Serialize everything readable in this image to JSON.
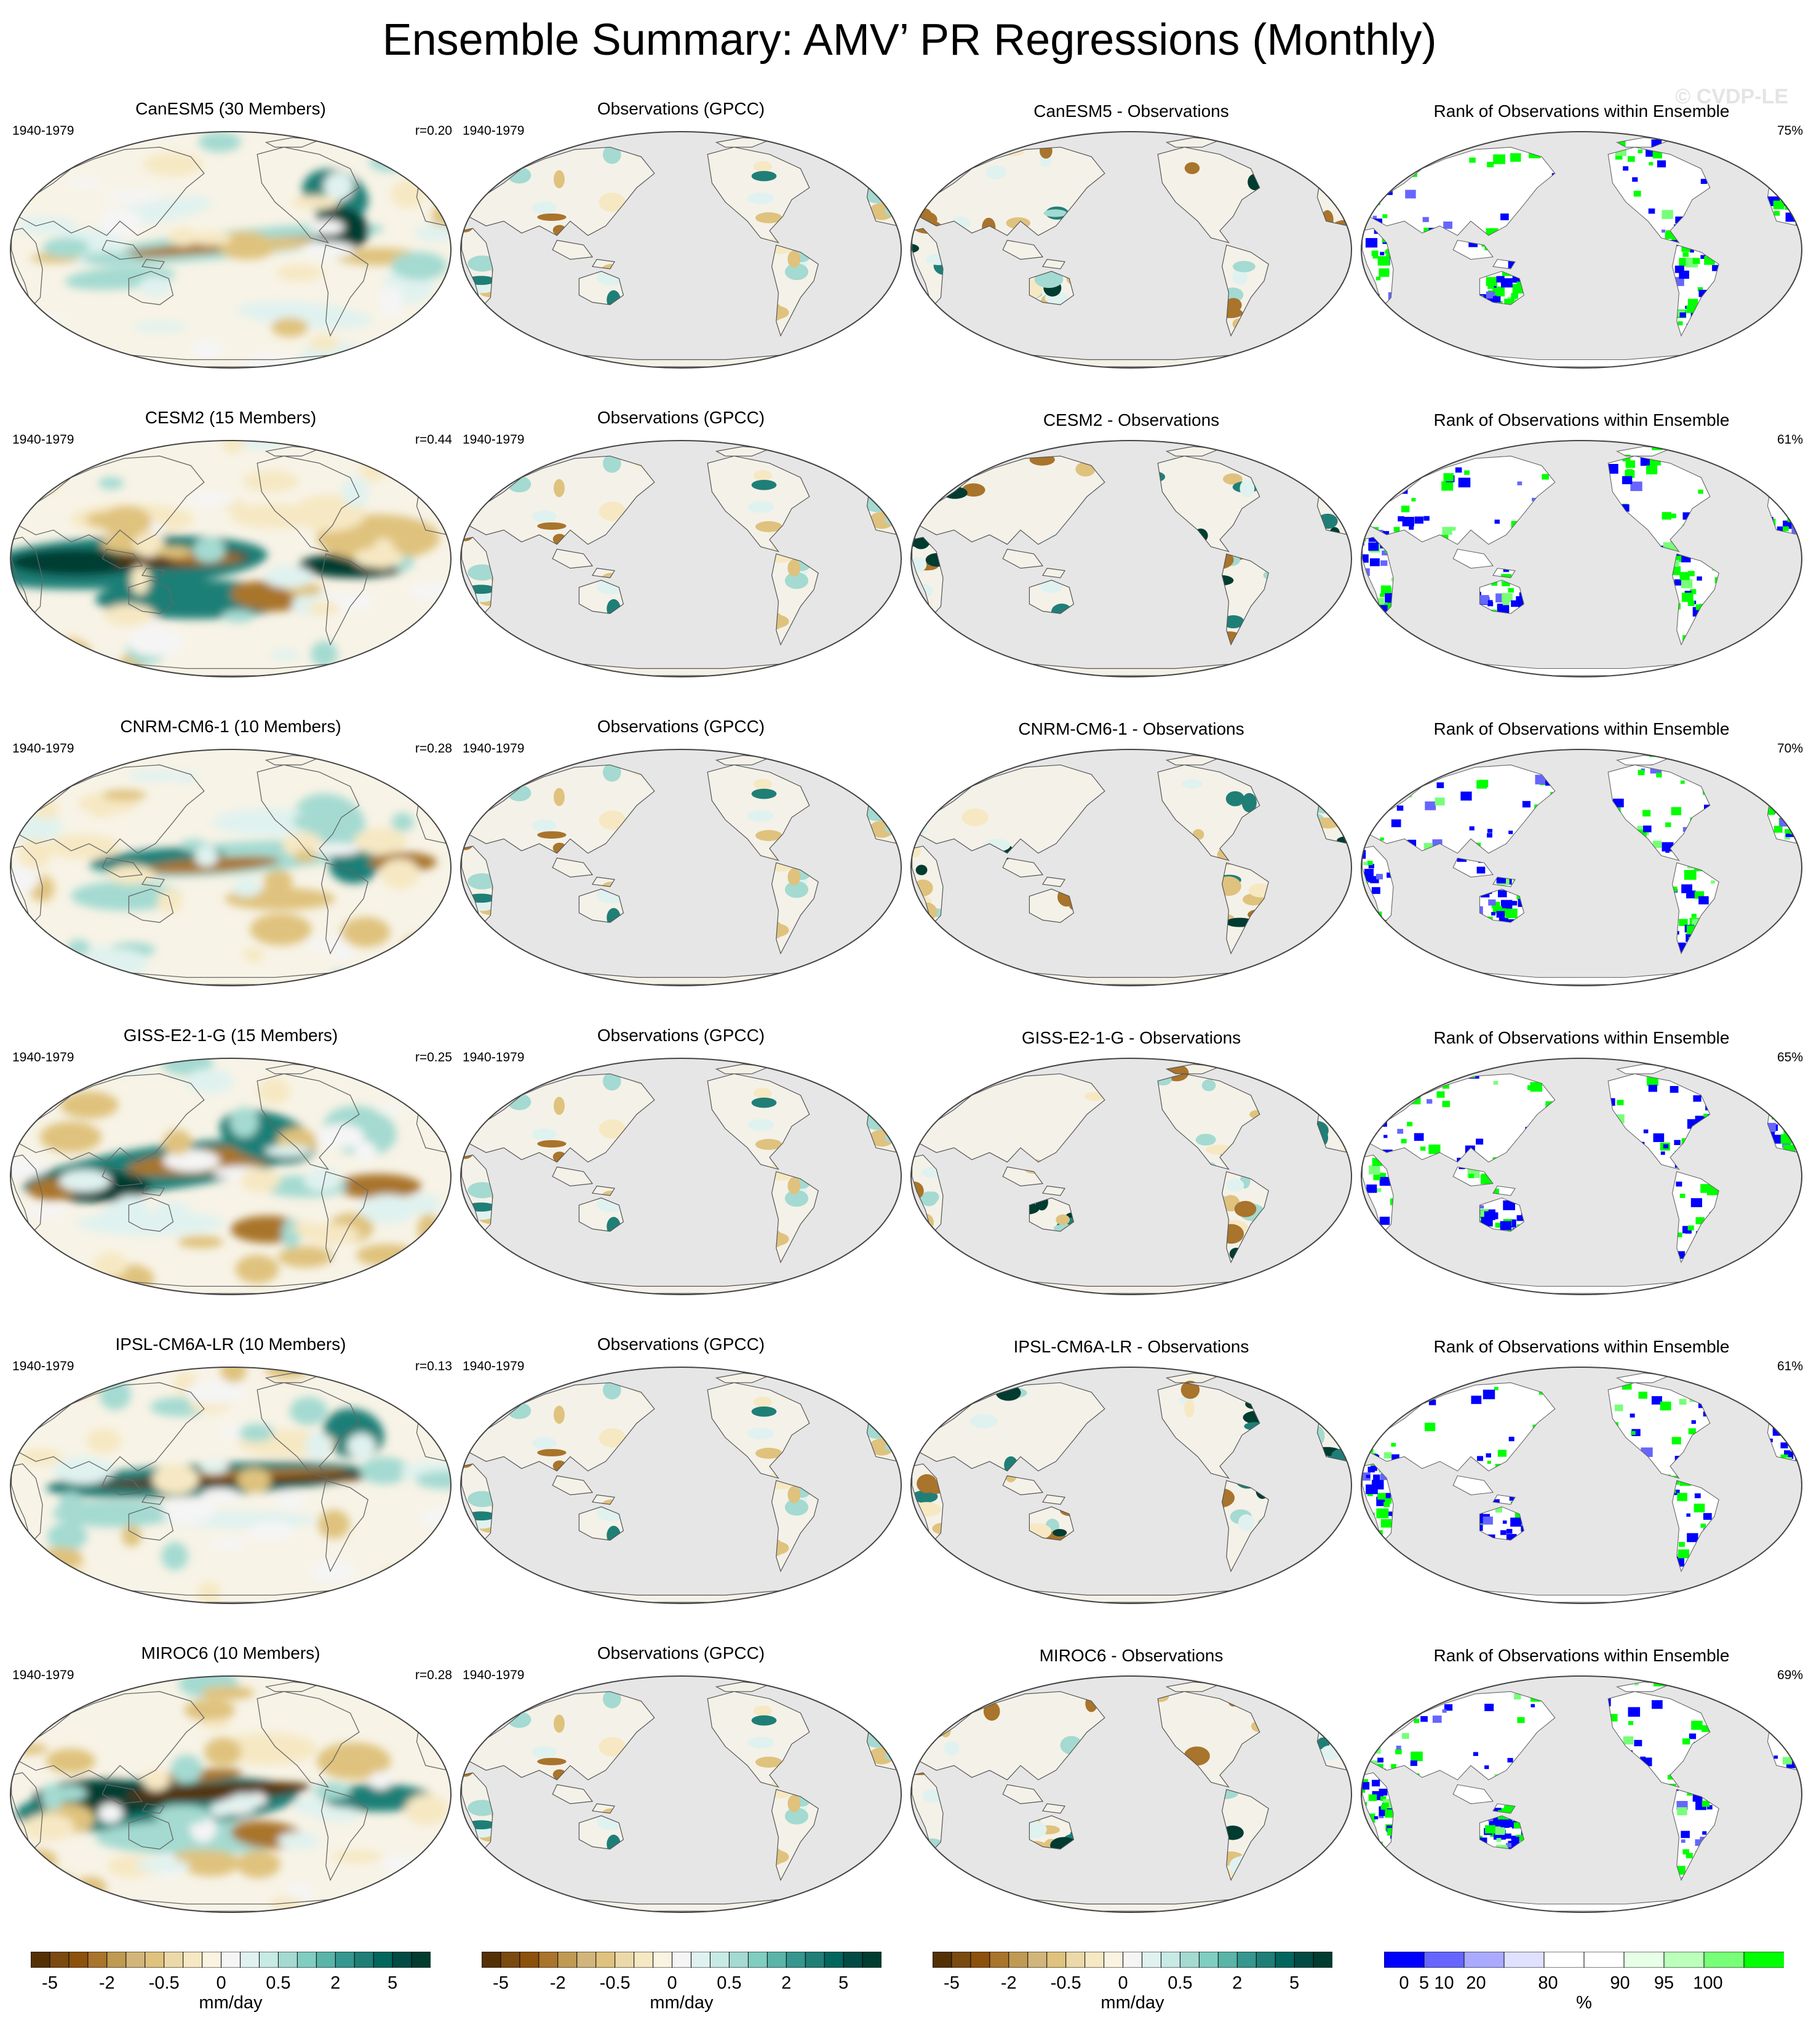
{
  "title": "Ensemble Summary: AMV’ PR Regressions (Monthly)",
  "watermark": "© CVDP-LE",
  "period": "1940-1979",
  "columns": {
    "obs_title": "Observations (GPCC)",
    "diff_suffix": " - Observations",
    "rank_title": "Rank of Observations within Ensemble"
  },
  "rows": [
    {
      "model": "CanESM5",
      "model_title": "CanESM5 (30 Members)",
      "r": "r=0.20",
      "rank_pct": "75%"
    },
    {
      "model": "CESM2",
      "model_title": "CESM2 (15 Members)",
      "r": "r=0.44",
      "rank_pct": "61%"
    },
    {
      "model": "CNRM-CM6-1",
      "model_title": "CNRM-CM6-1 (10 Members)",
      "r": "r=0.28",
      "rank_pct": "70%"
    },
    {
      "model": "GISS-E2-1-G",
      "model_title": "GISS-E2-1-G (15 Members)",
      "r": "r=0.25",
      "rank_pct": "65%"
    },
    {
      "model": "IPSL-CM6A-LR",
      "model_title": "IPSL-CM6A-LR (10 Members)",
      "r": "r=0.13",
      "rank_pct": "61%"
    },
    {
      "model": "MIROC6",
      "model_title": "MIROC6 (10 Members)",
      "r": "r=0.28",
      "rank_pct": "69%"
    }
  ],
  "colorbars": {
    "pr": {
      "unit": "mm/day",
      "colors": [
        "#543005",
        "#7a4a0f",
        "#8c510a",
        "#a9742b",
        "#bf9a52",
        "#d2b57a",
        "#dfc27d",
        "#ecd9a9",
        "#f6e8c3",
        "#faf3e1",
        "#f5f5f5",
        "#e0f2ef",
        "#c7eae5",
        "#a4dad1",
        "#80cdc1",
        "#5ab4a8",
        "#35978f",
        "#1f7f77",
        "#01665e",
        "#014b44",
        "#003c30"
      ],
      "tick_labels": [
        "-5",
        "-2",
        "-0.5",
        "0",
        "0.5",
        "2",
        "5"
      ],
      "tick_edges": [
        1,
        4,
        7,
        10,
        13,
        16,
        19
      ]
    },
    "rank": {
      "unit": "%",
      "colors": [
        "#0000ff",
        "#6666ff",
        "#aaaaff",
        "#e0e0ff",
        "#ffffff",
        "#ffffff",
        "#e6ffe6",
        "#bbffbb",
        "#77ff77",
        "#00ff00"
      ],
      "tick_labels": [
        "0",
        "5",
        "10",
        "20",
        "80",
        "90",
        "95",
        "100"
      ],
      "tick_edges": [
        0.5,
        1,
        1.5,
        2.3,
        4.1,
        5.9,
        7,
        8.1
      ]
    }
  },
  "chart_data": {
    "type": "heatmap",
    "title": "Ensemble Summary: AMV’ PR Regressions (Monthly)",
    "period": "1940-1979",
    "variable": "PR regression onto AMV’ (monthly)",
    "projection": "Robinson-like global, Pacific-centered",
    "pr_unit": "mm/day",
    "pr_contour_levels": [
      "-5",
      "-2",
      "-0.5",
      "0",
      "0.5",
      "2",
      "5"
    ],
    "rank_unit": "%",
    "rank_levels": [
      "0",
      "5",
      "10",
      "20",
      "80",
      "90",
      "95",
      "100"
    ],
    "panels_per_row": [
      "ensemble mean",
      "Observations (GPCC)",
      "model - Observations",
      "Rank of Observations within Ensemble"
    ],
    "models": [
      {
        "name": "CanESM5",
        "members": 30,
        "pattern_correlation": 0.2,
        "rank_percent": 75
      },
      {
        "name": "CESM2",
        "members": 15,
        "pattern_correlation": 0.44,
        "rank_percent": 61
      },
      {
        "name": "CNRM-CM6-1",
        "members": 10,
        "pattern_correlation": 0.28,
        "rank_percent": 70
      },
      {
        "name": "GISS-E2-1-G",
        "members": 15,
        "pattern_correlation": 0.25,
        "rank_percent": 65
      },
      {
        "name": "IPSL-CM6A-LR",
        "members": 10,
        "pattern_correlation": 0.13,
        "rank_percent": 61
      },
      {
        "name": "MIROC6",
        "members": 10,
        "pattern_correlation": 0.28,
        "rank_percent": 69
      }
    ]
  }
}
